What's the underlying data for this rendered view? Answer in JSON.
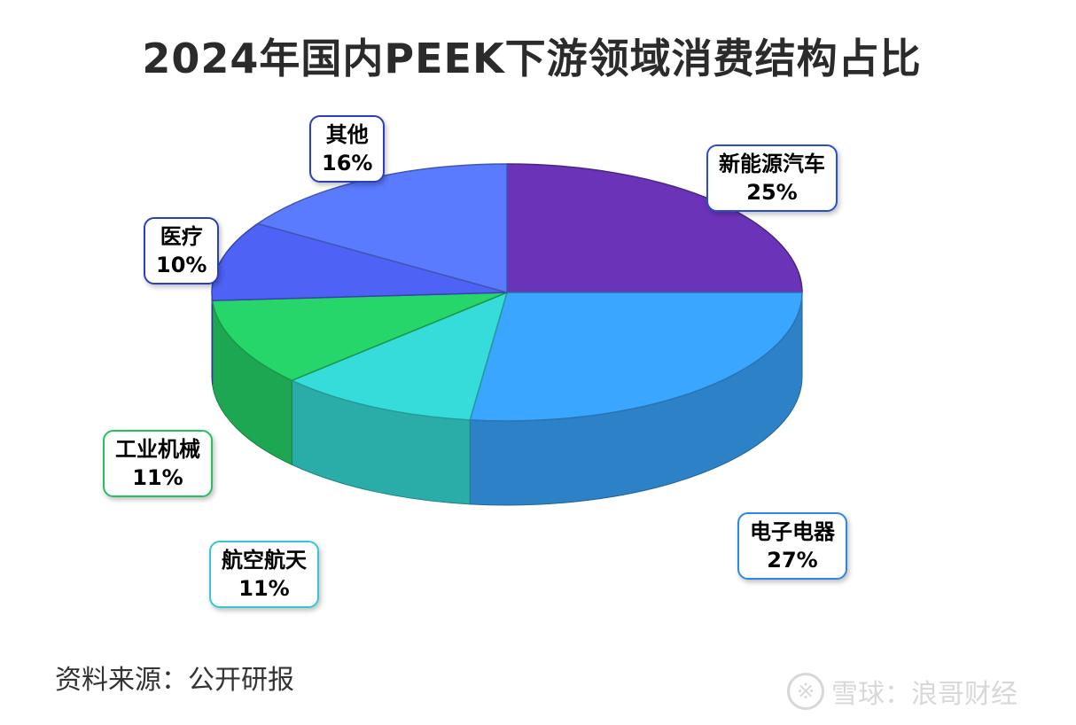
{
  "chart_data": {
    "type": "pie",
    "title": "2024年国内PEEK下游领域消费结构占比",
    "slices": [
      {
        "label": "新能源汽车",
        "value": 25,
        "value_label": "25%",
        "color": "#6b34b8",
        "label_color": "#2b4fcc"
      },
      {
        "label": "电子电器",
        "value": 27,
        "value_label": "27%",
        "color": "#3aa6ff",
        "label_color": "#2b6fd6"
      },
      {
        "label": "航空航天",
        "value": 11,
        "value_label": "11%",
        "color": "#36dcd9",
        "label_color": "#2bb8d0"
      },
      {
        "label": "工业机械",
        "value": 11,
        "value_label": "11%",
        "color": "#27d66a",
        "label_color": "#1e9e4e"
      },
      {
        "label": "医疗",
        "value": 10,
        "value_label": "10%",
        "color": "#4e63f5",
        "label_color": "#2b3fb8"
      },
      {
        "label": "其他",
        "value": 16,
        "value_label": "16%",
        "color": "#5b7bff",
        "label_color": "#2b3fb8"
      }
    ]
  },
  "source": "资料来源：公开研报",
  "watermark": {
    "logo": "※",
    "text": "雪球：浪哥财经"
  }
}
